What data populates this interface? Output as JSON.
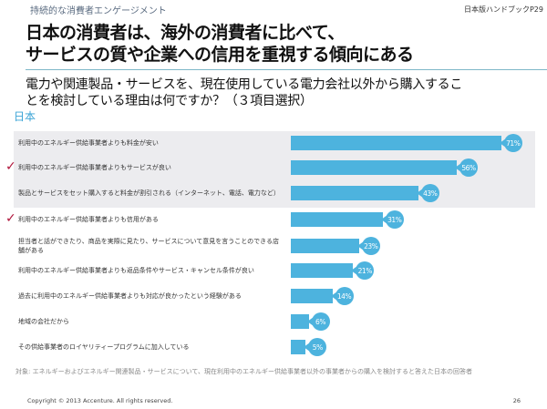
{
  "header": {
    "section": "持続的な消費者エンゲージメント",
    "handbook": "日本版ハンドブックP29"
  },
  "title": [
    "日本の消費者は、海外の消費者に比べて、",
    "サービスの質や企業への信用を重視する傾向にある"
  ],
  "question": [
    "電力や関連製品・サービスを、現在使用している電力会社以外から購入するこ",
    "とを検討している理由は何ですか？（３項目選択）"
  ],
  "colors": {
    "bar": "#4db3de",
    "check": "#b0163c",
    "band": "#ececef"
  },
  "chart_data": {
    "type": "bar",
    "orientation": "horizontal",
    "title": "日本",
    "xlim": [
      0,
      100
    ],
    "unit": "%",
    "categories": [
      "利用中のエネルギー供給事業者よりも料金が安い",
      "利用中のエネルギー供給事業者よりもサービスが良い",
      "製品とサービスをセット購入すると料金が割引される（インターネット、電話、電力など）",
      "利用中のエネルギー供給事業者よりも信用がある",
      "担当者と話ができたり、商品を実際に見たり、サービスについて意見を言うことのできる店舗がある",
      "利用中のエネルギー供給事業者よりも返品条件やサービス・キャンセル条件が良い",
      "過去に利用中のエネルギー供給事業者よりも対応が良かったという経験がある",
      "地域の会社だから",
      "その供給事業者のロイヤリティープログラムに加入している"
    ],
    "values": [
      71,
      56,
      43,
      31,
      23,
      21,
      14,
      6,
      5
    ],
    "labels": [
      "71%",
      "56%",
      "43%",
      "31%",
      "23%",
      "21%",
      "14%",
      "6%",
      "5%"
    ],
    "checked": [
      false,
      true,
      false,
      true,
      false,
      false,
      false,
      false,
      false
    ],
    "highlighted": [
      true,
      true,
      true,
      false,
      false,
      false,
      false,
      false,
      false
    ],
    "note": "対象: エネルギーおよびエネルギー関連製品・サービスについて、現在利用中のエネルギー供給事業者以外の事業者からの購入を検討すると答えた日本の回答者"
  },
  "check_glyph": "✓",
  "footer": {
    "copyright": "Copyright © 2013 Accenture. All rights reserved.",
    "page": "26"
  }
}
